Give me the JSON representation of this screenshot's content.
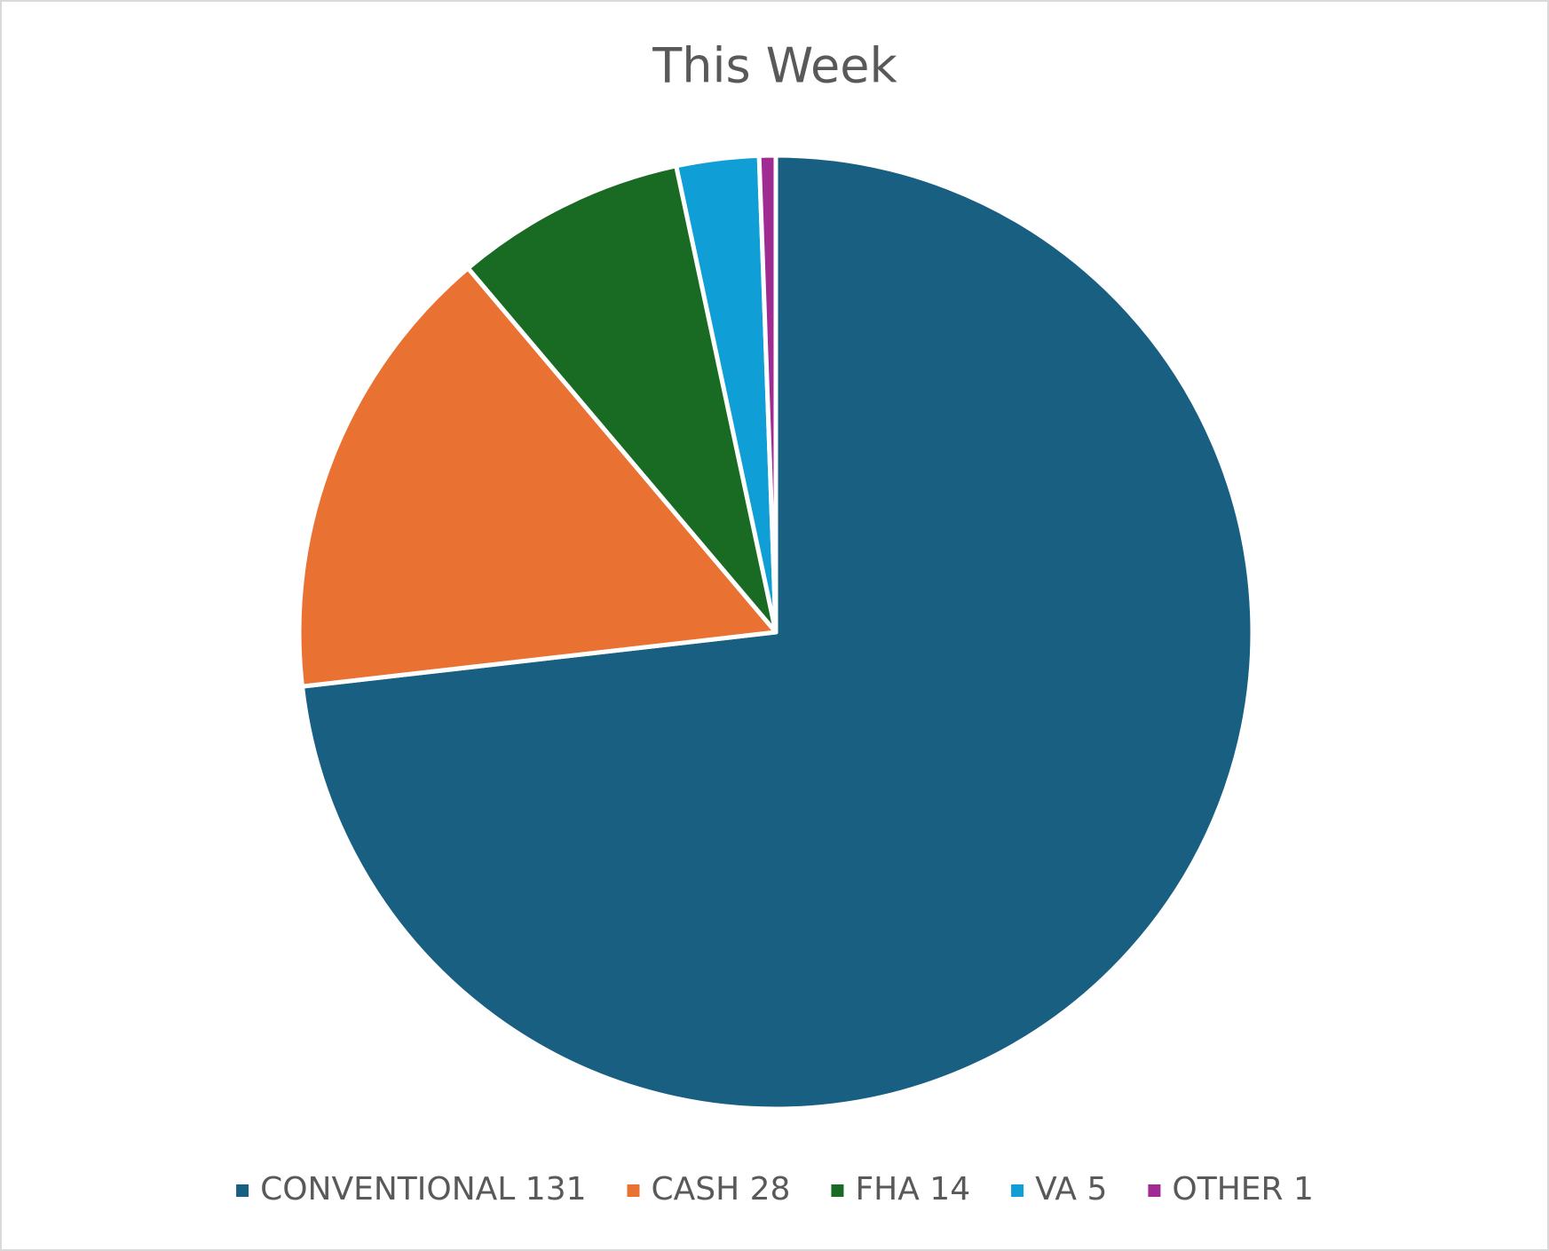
{
  "chart_data": {
    "type": "pie",
    "title": "This Week",
    "categories": [
      "CONVENTIONAL 131",
      "CASH 28",
      "FHA 14",
      "VA 5",
      "OTHER 1"
    ],
    "values": [
      131,
      28,
      14,
      5,
      1
    ],
    "colors": [
      "#185f82",
      "#e97132",
      "#196b24",
      "#0f9ed5",
      "#a02b93"
    ],
    "legend": "bottom"
  }
}
